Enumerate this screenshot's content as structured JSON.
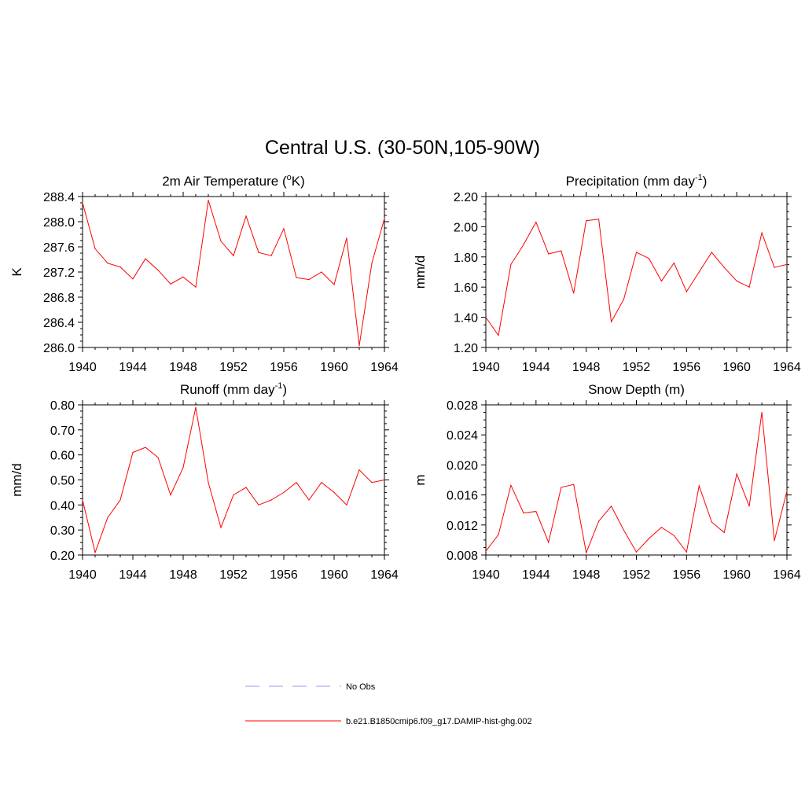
{
  "figure_title": "Central U.S. (30-50N,105-90W)",
  "colors": {
    "model": "#ff0000",
    "obs": "#9999ee",
    "axis": "#000000"
  },
  "legend": {
    "entries": [
      {
        "label": "No Obs",
        "style": "dashed",
        "color": "#9999ee"
      },
      {
        "label": "b.e21.B1850cmip6.f09_g17.DAMIP-hist-ghg.002",
        "style": "solid",
        "color": "#ff0000"
      }
    ]
  },
  "chart_data": [
    {
      "type": "line",
      "title": "2m Air Temperature (",
      "title_sup": "o",
      "title_after": "K)",
      "ylabel": "K",
      "xlim": [
        1940,
        1964
      ],
      "ylim": [
        286.0,
        288.4
      ],
      "xticks": [
        "1940",
        "1944",
        "1948",
        "1952",
        "1956",
        "1960",
        "1964"
      ],
      "yticks": [
        "286.0",
        "286.4",
        "286.8",
        "287.2",
        "287.6",
        "288.0",
        "288.4"
      ],
      "x": [
        1940,
        1941,
        1942,
        1943,
        1944,
        1945,
        1946,
        1947,
        1948,
        1949,
        1950,
        1951,
        1952,
        1953,
        1954,
        1955,
        1956,
        1957,
        1958,
        1959,
        1960,
        1961,
        1962,
        1963,
        1964
      ],
      "series": [
        {
          "values": [
            288.3,
            287.57,
            287.34,
            287.28,
            287.09,
            287.41,
            287.23,
            287.01,
            287.12,
            286.96,
            288.34,
            287.69,
            287.46,
            288.09,
            287.51,
            287.46,
            287.89,
            287.11,
            287.08,
            287.2,
            287.0,
            287.74,
            286.03,
            287.34,
            288.05
          ]
        }
      ]
    },
    {
      "type": "line",
      "title": "Precipitation (mm day",
      "title_sup": "-1",
      "title_after": ")",
      "ylabel": "mm/d",
      "xlim": [
        1940,
        1964
      ],
      "ylim": [
        1.2,
        2.2
      ],
      "xticks": [
        "1940",
        "1944",
        "1948",
        "1952",
        "1956",
        "1960",
        "1964"
      ],
      "yticks": [
        "1.20",
        "1.40",
        "1.60",
        "1.80",
        "2.00",
        "2.20"
      ],
      "x": [
        1940,
        1941,
        1942,
        1943,
        1944,
        1945,
        1946,
        1947,
        1948,
        1949,
        1950,
        1951,
        1952,
        1953,
        1954,
        1955,
        1956,
        1957,
        1958,
        1959,
        1960,
        1961,
        1962,
        1963,
        1964
      ],
      "series": [
        {
          "values": [
            1.4,
            1.28,
            1.75,
            1.88,
            2.03,
            1.82,
            1.84,
            1.56,
            2.04,
            2.05,
            1.37,
            1.52,
            1.83,
            1.79,
            1.64,
            1.76,
            1.57,
            1.7,
            1.83,
            1.73,
            1.64,
            1.6,
            1.96,
            1.73,
            1.75
          ]
        }
      ]
    },
    {
      "type": "line",
      "title": "Runoff (mm day",
      "title_sup": "-1",
      "title_after": ")",
      "ylabel": "mm/d",
      "xlim": [
        1940,
        1964
      ],
      "ylim": [
        0.2,
        0.8
      ],
      "xticks": [
        "1940",
        "1944",
        "1948",
        "1952",
        "1956",
        "1960",
        "1964"
      ],
      "yticks": [
        "0.20",
        "0.30",
        "0.40",
        "0.50",
        "0.60",
        "0.70",
        "0.80"
      ],
      "x": [
        1940,
        1941,
        1942,
        1943,
        1944,
        1945,
        1946,
        1947,
        1948,
        1949,
        1950,
        1951,
        1952,
        1953,
        1954,
        1955,
        1956,
        1957,
        1958,
        1959,
        1960,
        1961,
        1962,
        1963,
        1964
      ],
      "series": [
        {
          "values": [
            0.42,
            0.21,
            0.35,
            0.42,
            0.61,
            0.63,
            0.59,
            0.44,
            0.55,
            0.79,
            0.49,
            0.31,
            0.44,
            0.47,
            0.4,
            0.42,
            0.45,
            0.49,
            0.42,
            0.49,
            0.45,
            0.4,
            0.54,
            0.49,
            0.5
          ]
        }
      ]
    },
    {
      "type": "line",
      "title": "Snow Depth (m)",
      "title_sup": "",
      "title_after": "",
      "ylabel": "m",
      "xlim": [
        1940,
        1964
      ],
      "ylim": [
        0.008,
        0.028
      ],
      "xticks": [
        "1940",
        "1944",
        "1948",
        "1952",
        "1956",
        "1960",
        "1964"
      ],
      "yticks": [
        "0.008",
        "0.012",
        "0.016",
        "0.020",
        "0.024",
        "0.028"
      ],
      "x": [
        1940,
        1941,
        1942,
        1943,
        1944,
        1945,
        1946,
        1947,
        1948,
        1949,
        1950,
        1951,
        1952,
        1953,
        1954,
        1955,
        1956,
        1957,
        1958,
        1959,
        1960,
        1961,
        1962,
        1963,
        1964
      ],
      "series": [
        {
          "values": [
            0.0085,
            0.0107,
            0.0173,
            0.0136,
            0.0138,
            0.0097,
            0.017,
            0.0174,
            0.0083,
            0.0125,
            0.0145,
            0.0113,
            0.0084,
            0.0102,
            0.0117,
            0.0106,
            0.0084,
            0.0172,
            0.0124,
            0.011,
            0.0188,
            0.0145,
            0.027,
            0.0099,
            0.0165
          ]
        }
      ]
    }
  ]
}
